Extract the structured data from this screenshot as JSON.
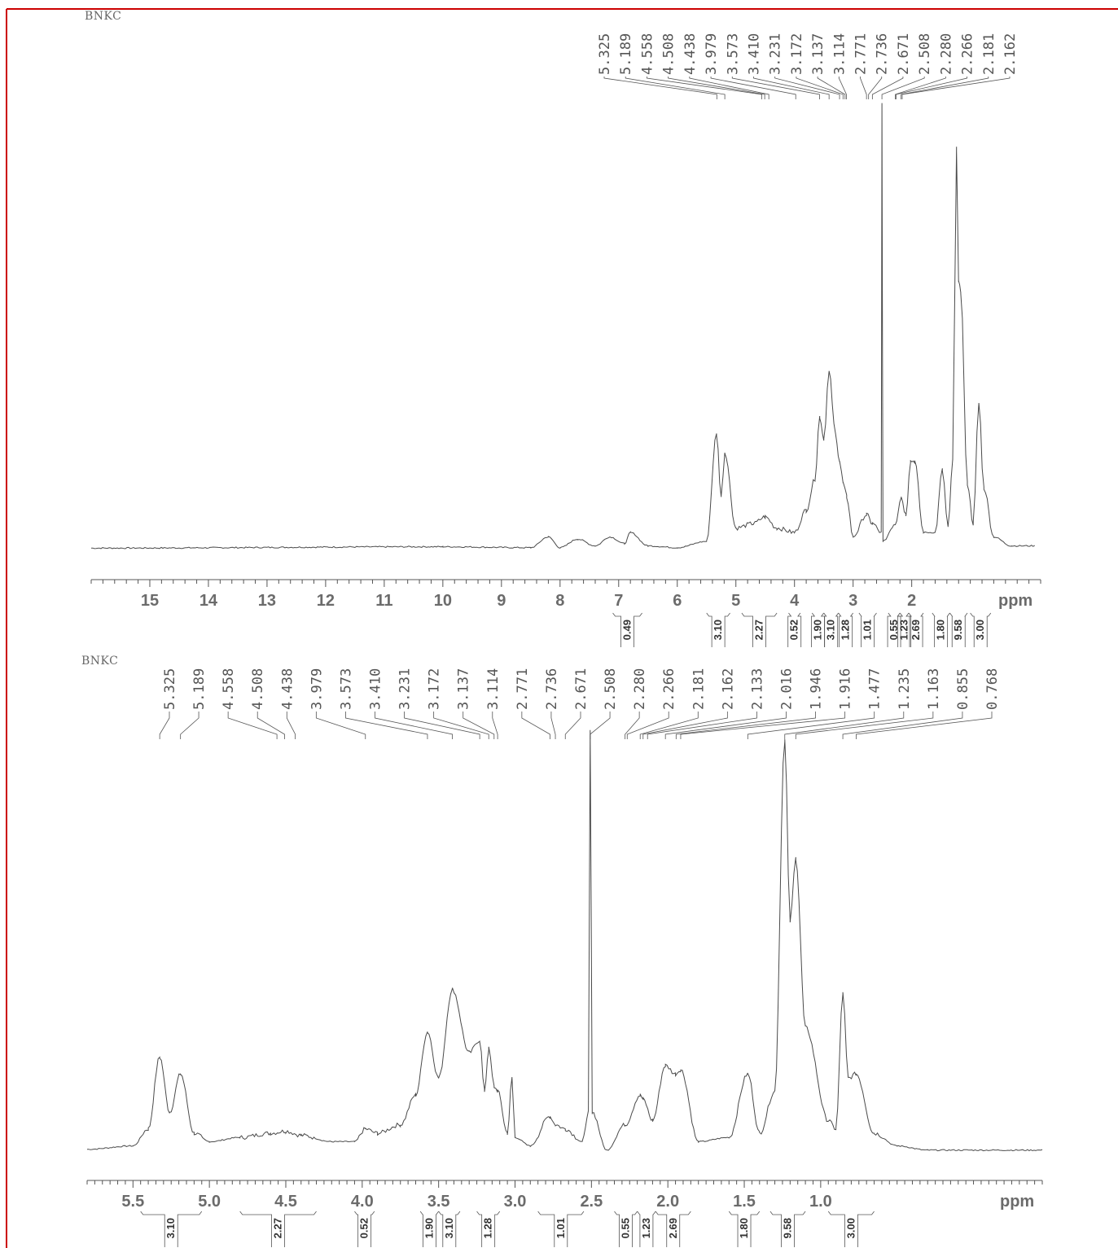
{
  "colors": {
    "frame": "#cc0000",
    "trace": "#4a4a4a",
    "tick_text": "#6b6b6b"
  },
  "chart_data": [
    {
      "type": "line",
      "title": "BNKC",
      "x_unit": "ppm",
      "xlim": [
        16,
        -0.2
      ],
      "x_reversed": true,
      "grid": false,
      "x_ticks": [
        "15",
        "14",
        "13",
        "12",
        "11",
        "10",
        "9",
        "8",
        "7",
        "6",
        "5",
        "4",
        "3",
        "2"
      ],
      "peak_labels": [
        "5.325",
        "5.189",
        "4.558",
        "4.508",
        "4.438",
        "3.979",
        "3.573",
        "3.410",
        "3.231",
        "3.172",
        "3.137",
        "3.114",
        "2.771",
        "2.736",
        "2.671",
        "2.508",
        "2.280",
        "2.266",
        "2.181",
        "2.162"
      ],
      "integrals": [
        {
          "from": 7.1,
          "to": 6.6,
          "value": "0.49"
        },
        {
          "from": 5.5,
          "to": 5.1,
          "value": "3.10"
        },
        {
          "from": 4.9,
          "to": 4.3,
          "value": "2.27"
        },
        {
          "from": 4.1,
          "to": 3.9,
          "value": "0.52"
        },
        {
          "from": 3.7,
          "to": 3.5,
          "value": "1.90"
        },
        {
          "from": 3.5,
          "to": 3.25,
          "value": "3.10"
        },
        {
          "from": 3.25,
          "to": 3.0,
          "value": "1.28"
        },
        {
          "from": 2.9,
          "to": 2.6,
          "value": "1.01"
        },
        {
          "from": 2.4,
          "to": 2.2,
          "value": "0.55"
        },
        {
          "from": 2.2,
          "to": 2.05,
          "value": "1.23"
        },
        {
          "from": 2.05,
          "to": 1.8,
          "value": "2.69"
        },
        {
          "from": 1.65,
          "to": 1.35,
          "value": "1.80"
        },
        {
          "from": 1.35,
          "to": 1.05,
          "value": "9.58"
        },
        {
          "from": 1.0,
          "to": 0.65,
          "value": "3.00"
        }
      ],
      "series": [
        {
          "points": [
            [
              16,
              0.005
            ],
            [
              10,
              0.008
            ],
            [
              8.5,
              0.006
            ],
            [
              8.2,
              0.03
            ],
            [
              8.0,
              0.006
            ],
            [
              7.7,
              0.025
            ],
            [
              7.4,
              0.01
            ],
            [
              7.15,
              0.03
            ],
            [
              6.9,
              0.015
            ],
            [
              6.8,
              0.04
            ],
            [
              6.5,
              0.01
            ],
            [
              6.0,
              0.006
            ],
            [
              5.5,
              0.02
            ],
            [
              5.33,
              0.26
            ],
            [
              5.25,
              0.12
            ],
            [
              5.19,
              0.22
            ],
            [
              5.0,
              0.05
            ],
            [
              4.7,
              0.06
            ],
            [
              4.5,
              0.075
            ],
            [
              4.3,
              0.05
            ],
            [
              4.0,
              0.04
            ],
            [
              3.8,
              0.09
            ],
            [
              3.65,
              0.16
            ],
            [
              3.57,
              0.3
            ],
            [
              3.5,
              0.25
            ],
            [
              3.41,
              0.4
            ],
            [
              3.3,
              0.26
            ],
            [
              3.23,
              0.2
            ],
            [
              3.17,
              0.15
            ],
            [
              3.11,
              0.12
            ],
            [
              3.0,
              0.03
            ],
            [
              2.77,
              0.08
            ],
            [
              2.67,
              0.06
            ],
            [
              2.52,
              0.04
            ],
            [
              2.508,
              1.0
            ],
            [
              2.49,
              0.02
            ],
            [
              2.28,
              0.06
            ],
            [
              2.18,
              0.12
            ],
            [
              2.1,
              0.08
            ],
            [
              2.02,
              0.2
            ],
            [
              1.95,
              0.2
            ],
            [
              1.8,
              0.04
            ],
            [
              1.6,
              0.04
            ],
            [
              1.477,
              0.18
            ],
            [
              1.38,
              0.05
            ],
            [
              1.3,
              0.2
            ],
            [
              1.235,
              0.9
            ],
            [
              1.2,
              0.6
            ],
            [
              1.163,
              0.58
            ],
            [
              1.05,
              0.15
            ],
            [
              0.95,
              0.06
            ],
            [
              0.855,
              0.33
            ],
            [
              0.768,
              0.14
            ],
            [
              0.6,
              0.03
            ],
            [
              0.3,
              0.01
            ],
            [
              -0.1,
              0.01
            ]
          ]
        }
      ]
    },
    {
      "type": "line",
      "title": "BNKC",
      "x_unit": "ppm",
      "xlim": [
        5.8,
        -0.45
      ],
      "x_reversed": true,
      "grid": false,
      "x_ticks": [
        "5.5",
        "5.0",
        "4.5",
        "4.0",
        "3.5",
        "3.0",
        "2.5",
        "2.0",
        "1.5",
        "1.0"
      ],
      "peak_labels": [
        "5.325",
        "5.189",
        "4.558",
        "4.508",
        "4.438",
        "3.979",
        "3.573",
        "3.410",
        "3.231",
        "3.172",
        "3.137",
        "3.114",
        "2.771",
        "2.736",
        "2.671",
        "2.508",
        "2.280",
        "2.266",
        "2.181",
        "2.162",
        "2.133",
        "2.016",
        "1.946",
        "1.916",
        "1.477",
        "1.235",
        "1.163",
        "0.855",
        "0.768"
      ],
      "integrals": [
        {
          "from": 5.45,
          "to": 5.05,
          "value": "3.10"
        },
        {
          "from": 4.8,
          "to": 4.3,
          "value": "2.27"
        },
        {
          "from": 4.05,
          "to": 3.92,
          "value": "0.52"
        },
        {
          "from": 3.62,
          "to": 3.5,
          "value": "1.90"
        },
        {
          "from": 3.5,
          "to": 3.36,
          "value": "3.10"
        },
        {
          "from": 3.25,
          "to": 3.1,
          "value": "1.28"
        },
        {
          "from": 2.85,
          "to": 2.55,
          "value": "1.01"
        },
        {
          "from": 2.35,
          "to": 2.2,
          "value": "0.55"
        },
        {
          "from": 2.2,
          "to": 2.08,
          "value": "1.23"
        },
        {
          "from": 2.08,
          "to": 1.85,
          "value": "2.69"
        },
        {
          "from": 1.6,
          "to": 1.4,
          "value": "1.80"
        },
        {
          "from": 1.33,
          "to": 1.1,
          "value": "9.58"
        },
        {
          "from": 0.95,
          "to": 0.65,
          "value": "3.00"
        }
      ],
      "series": [
        {
          "points": [
            [
              5.8,
              0.012
            ],
            [
              5.5,
              0.02
            ],
            [
              5.4,
              0.06
            ],
            [
              5.325,
              0.23
            ],
            [
              5.26,
              0.1
            ],
            [
              5.189,
              0.19
            ],
            [
              5.1,
              0.05
            ],
            [
              5.0,
              0.03
            ],
            [
              4.8,
              0.04
            ],
            [
              4.6,
              0.05
            ],
            [
              4.5,
              0.055
            ],
            [
              4.4,
              0.045
            ],
            [
              4.2,
              0.03
            ],
            [
              4.05,
              0.03
            ],
            [
              3.979,
              0.06
            ],
            [
              3.9,
              0.05
            ],
            [
              3.75,
              0.07
            ],
            [
              3.65,
              0.14
            ],
            [
              3.573,
              0.29
            ],
            [
              3.5,
              0.18
            ],
            [
              3.41,
              0.39
            ],
            [
              3.3,
              0.24
            ],
            [
              3.231,
              0.27
            ],
            [
              3.2,
              0.15
            ],
            [
              3.172,
              0.25
            ],
            [
              3.137,
              0.16
            ],
            [
              3.114,
              0.15
            ],
            [
              3.05,
              0.05
            ],
            [
              3.02,
              0.18
            ],
            [
              3.0,
              0.04
            ],
            [
              2.9,
              0.02
            ],
            [
              2.771,
              0.09
            ],
            [
              2.736,
              0.07
            ],
            [
              2.671,
              0.06
            ],
            [
              2.56,
              0.03
            ],
            [
              2.52,
              0.1
            ],
            [
              2.508,
              1.0
            ],
            [
              2.495,
              0.1
            ],
            [
              2.4,
              0.01
            ],
            [
              2.28,
              0.07
            ],
            [
              2.181,
              0.14
            ],
            [
              2.162,
              0.13
            ],
            [
              2.1,
              0.08
            ],
            [
              2.016,
              0.21
            ],
            [
              1.95,
              0.19
            ],
            [
              1.916,
              0.2
            ],
            [
              1.8,
              0.03
            ],
            [
              1.6,
              0.04
            ],
            [
              1.477,
              0.19
            ],
            [
              1.4,
              0.05
            ],
            [
              1.3,
              0.15
            ],
            [
              1.235,
              0.98
            ],
            [
              1.2,
              0.55
            ],
            [
              1.163,
              0.7
            ],
            [
              1.1,
              0.3
            ],
            [
              0.95,
              0.08
            ],
            [
              0.9,
              0.06
            ],
            [
              0.855,
              0.38
            ],
            [
              0.82,
              0.18
            ],
            [
              0.768,
              0.19
            ],
            [
              0.65,
              0.05
            ],
            [
              0.5,
              0.02
            ],
            [
              0.3,
              0.01
            ],
            [
              -0.45,
              0.01
            ]
          ]
        }
      ]
    }
  ]
}
